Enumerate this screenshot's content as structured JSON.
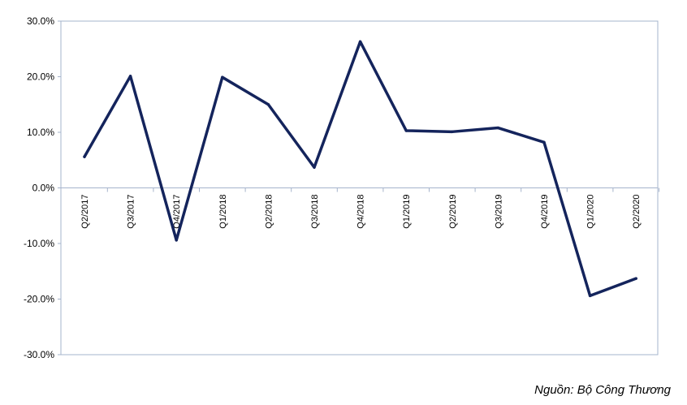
{
  "chart_data": {
    "type": "line",
    "title": "",
    "xlabel": "",
    "ylabel": "",
    "categories": [
      "Q2/2017",
      "Q3/2017",
      "Q4/2017",
      "Q1/2018",
      "Q2/2018",
      "Q3/2018",
      "Q4/2018",
      "Q1/2019",
      "Q2/2019",
      "Q3/2019",
      "Q4/2019",
      "Q1/2020",
      "Q2/2020"
    ],
    "series": [
      {
        "values": [
          5.6,
          20.1,
          -9.4,
          19.9,
          15.0,
          3.7,
          26.3,
          10.3,
          10.1,
          10.8,
          8.2,
          -19.4,
          -16.3
        ]
      }
    ],
    "y_ticks": [
      "30.0%",
      "20.0%",
      "10.0%",
      "0.0%",
      "-10.0%",
      "-20.0%",
      "-30.0%"
    ],
    "ylim": [
      -30,
      30
    ],
    "grid": false,
    "legend": "none",
    "line_color": "#14245c",
    "axis_color": "#a6b4cc"
  },
  "source_note": "Nguồn: Bộ Công Thương"
}
